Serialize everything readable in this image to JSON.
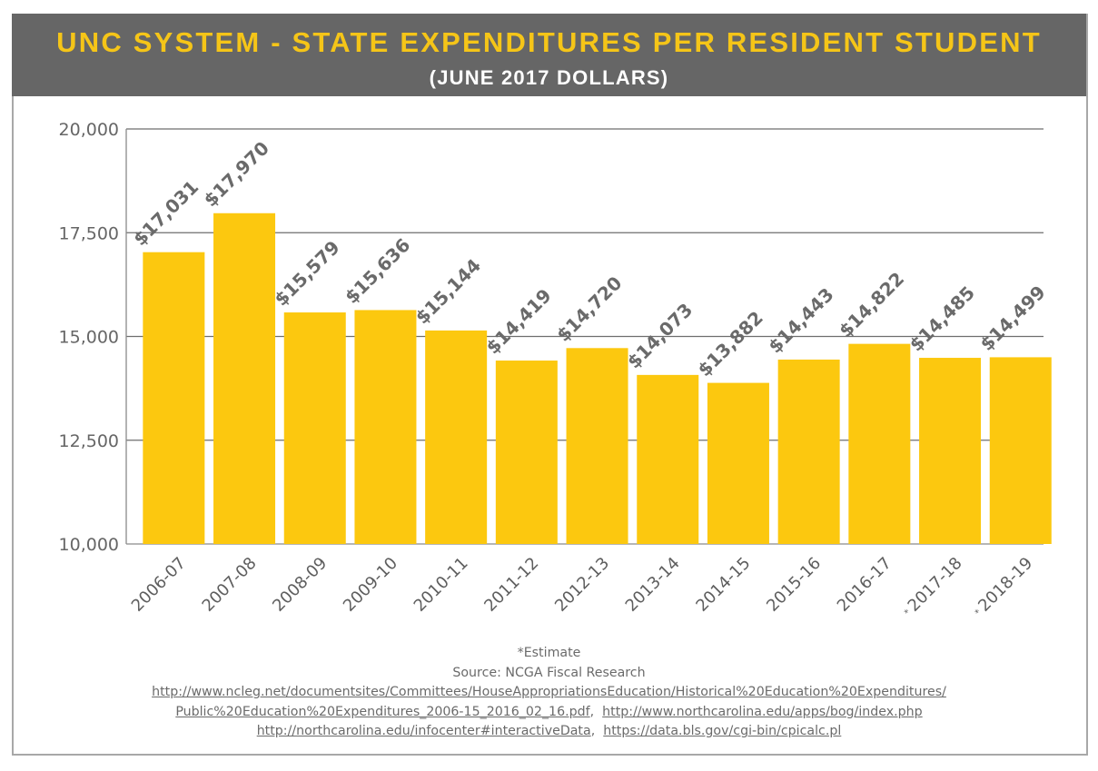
{
  "header": {
    "title": "UNC SYSTEM - STATE EXPENDITURES PER RESIDENT STUDENT",
    "subtitle": "(JUNE 2017 DOLLARS)"
  },
  "colors": {
    "header_bg": "#666666",
    "title": "#f5c518",
    "subtitle": "#ffffff",
    "bar": "#fcc80f",
    "text": "#666666",
    "gridline": "#6e6e6e",
    "border": "#a8a8a8"
  },
  "chart_data": {
    "type": "bar",
    "title": "UNC SYSTEM - STATE EXPENDITURES PER RESIDENT STUDENT",
    "subtitle": "(JUNE 2017 DOLLARS)",
    "xlabel": "",
    "ylabel": "",
    "ylim": [
      10000,
      20000
    ],
    "yticks": [
      10000,
      12500,
      15000,
      17500,
      20000
    ],
    "ytick_labels": [
      "10,000",
      "12,500",
      "15,000",
      "17,500",
      "20,000"
    ],
    "grid": true,
    "legend": "none",
    "categories": [
      "2006-07",
      "2007-08",
      "2008-09",
      "2009-10",
      "2010-11",
      "2011-12",
      "2012-13",
      "2013-14",
      "2014-15",
      "2015-16",
      "2016-17",
      "2017-18",
      "2018-19"
    ],
    "estimate_flags": [
      false,
      false,
      false,
      false,
      false,
      false,
      false,
      false,
      false,
      false,
      false,
      true,
      true
    ],
    "values": [
      17031,
      17970,
      15579,
      15636,
      15144,
      14419,
      14720,
      14073,
      13882,
      14443,
      14822,
      14485,
      14499
    ],
    "data_labels": [
      "$17,031",
      "$17,970",
      "$15,579",
      "$15,636",
      "$15,144",
      "$14,419",
      "$14,720",
      "$14,073",
      "$13,882",
      "$14,443",
      "$14,822",
      "$14,485",
      "$14,499"
    ],
    "estimate_marker": "*"
  },
  "footer": {
    "note": "*Estimate",
    "source": "Source: NCGA Fiscal Research",
    "links": [
      "http://www.ncleg.net/documentsites/Committees/HouseAppropriationsEducation/Historical%20Education%20Expenditures/",
      "Public%20Education%20Expenditures_2006-15_2016_02_16.pdf",
      "http://www.northcarolina.edu/apps/bog/index.php",
      "http://northcarolina.edu/infocenter#interactiveData",
      "https://data.bls.gov/cgi-bin/cpicalc.pl"
    ],
    "separator": ","
  }
}
